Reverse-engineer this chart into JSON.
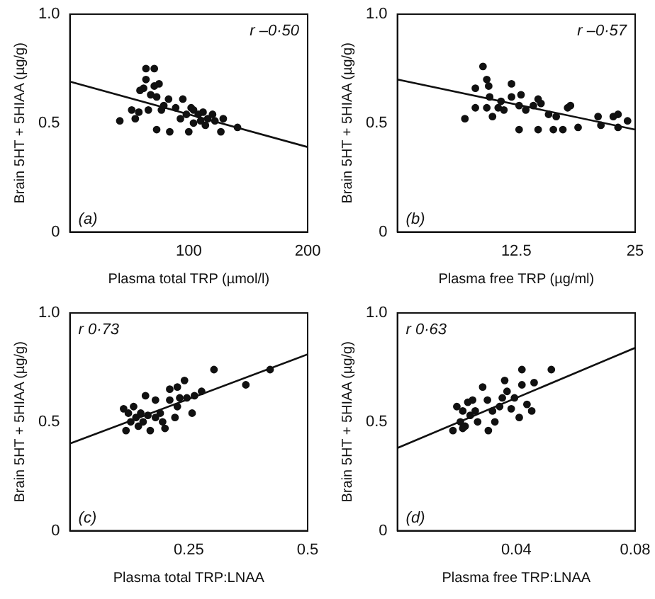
{
  "chart_data": [
    {
      "type": "scatter",
      "xlabel": "Plasma total TRP (µmol/l)",
      "ylabel": "Brain 5HT + 5HIAA (µg/g)",
      "xlim": [
        0,
        200
      ],
      "xticks": [
        100,
        200
      ],
      "ylim": [
        0,
        1
      ],
      "yticks": [
        {
          "value": 0,
          "label": "0"
        },
        {
          "value": 0.5,
          "label": "0.5"
        },
        {
          "value": 1,
          "label": "1.0"
        }
      ],
      "grid": false,
      "legend": false,
      "marker": "circle",
      "annotations": [
        "r –0·50",
        "(a)"
      ],
      "series": [
        {
          "color": "#111111",
          "x": [
            42,
            52,
            55,
            58,
            59,
            62,
            64,
            71,
            64,
            66,
            68,
            71,
            73,
            75,
            77,
            79,
            73,
            84,
            83,
            89,
            95,
            98,
            100,
            102,
            104,
            108,
            110,
            112,
            114,
            116,
            120,
            122,
            127,
            129,
            141,
            104,
            93
          ],
          "values": [
            0.51,
            0.56,
            0.52,
            0.55,
            0.65,
            0.66,
            0.75,
            0.75,
            0.7,
            0.56,
            0.63,
            0.67,
            0.62,
            0.68,
            0.56,
            0.58,
            0.47,
            0.46,
            0.61,
            0.57,
            0.61,
            0.54,
            0.46,
            0.57,
            0.56,
            0.54,
            0.51,
            0.55,
            0.49,
            0.52,
            0.54,
            0.51,
            0.46,
            0.52,
            0.48,
            0.5,
            0.52
          ]
        },
        {
          "type": "line",
          "color": "#111111",
          "marker": "none",
          "x": [
            0,
            200
          ],
          "values": [
            0.69,
            0.39
          ]
        }
      ]
    },
    {
      "type": "scatter",
      "xlabel": "Plasma free TRP (µg/ml)",
      "ylabel": "Brain 5HT + 5HIAA (µg/g)",
      "xlim": [
        0,
        25
      ],
      "xticks": [
        12.5,
        25
      ],
      "ylim": [
        0,
        1
      ],
      "yticks": [
        {
          "value": 0,
          "label": "0"
        },
        {
          "value": 0.5,
          "label": "0.5"
        },
        {
          "value": 1,
          "label": "1.0"
        }
      ],
      "grid": false,
      "legend": false,
      "marker": "circle",
      "annotations": [
        "r –0·57",
        "(b)"
      ],
      "series": [
        {
          "color": "#111111",
          "x": [
            7.1,
            8.2,
            8.2,
            9,
            9.4,
            9.6,
            9.7,
            10,
            9.4,
            10.6,
            10.9,
            11.2,
            12,
            12,
            12.8,
            13,
            13.5,
            14.3,
            14.8,
            15.1,
            14.8,
            15.9,
            16.4,
            16.7,
            17.4,
            17.9,
            18.2,
            19,
            21.1,
            21.4,
            22.7,
            23.2,
            23.2,
            24.2,
            12.8
          ],
          "values": [
            0.52,
            0.57,
            0.66,
            0.76,
            0.7,
            0.67,
            0.62,
            0.53,
            0.57,
            0.57,
            0.6,
            0.56,
            0.68,
            0.62,
            0.58,
            0.63,
            0.56,
            0.58,
            0.61,
            0.59,
            0.47,
            0.54,
            0.47,
            0.53,
            0.47,
            0.57,
            0.58,
            0.48,
            0.53,
            0.49,
            0.53,
            0.54,
            0.48,
            0.51,
            0.47
          ]
        },
        {
          "type": "line",
          "color": "#111111",
          "marker": "none",
          "x": [
            0,
            25
          ],
          "values": [
            0.7,
            0.47
          ]
        }
      ]
    },
    {
      "type": "scatter",
      "xlabel": "Plasma total TRP:LNAA",
      "ylabel": "Brain 5HT + 5HIAA (µg/g)",
      "xlim": [
        0,
        0.5
      ],
      "xticks": [
        0.25,
        0.5
      ],
      "ylim": [
        0,
        1
      ],
      "yticks": [
        {
          "value": 0,
          "label": "0"
        },
        {
          "value": 0.5,
          "label": "0.5"
        },
        {
          "value": 1,
          "label": "1.0"
        }
      ],
      "grid": false,
      "legend": false,
      "marker": "circle",
      "annotations": [
        "r 0·73",
        "(c)"
      ],
      "series": [
        {
          "color": "#111111",
          "x": [
            0.118,
            0.123,
            0.128,
            0.134,
            0.139,
            0.144,
            0.149,
            0.154,
            0.159,
            0.164,
            0.169,
            0.18,
            0.18,
            0.19,
            0.195,
            0.2,
            0.21,
            0.21,
            0.221,
            0.226,
            0.231,
            0.241,
            0.246,
            0.257,
            0.262,
            0.277,
            0.303,
            0.37,
            0.421,
            0.113,
            0.226
          ],
          "values": [
            0.46,
            0.54,
            0.5,
            0.57,
            0.52,
            0.48,
            0.54,
            0.5,
            0.62,
            0.53,
            0.46,
            0.52,
            0.6,
            0.54,
            0.5,
            0.47,
            0.65,
            0.6,
            0.52,
            0.57,
            0.61,
            0.69,
            0.61,
            0.54,
            0.62,
            0.64,
            0.74,
            0.67,
            0.74,
            0.56,
            0.66
          ]
        },
        {
          "type": "line",
          "color": "#111111",
          "marker": "none",
          "x": [
            0,
            0.5
          ],
          "values": [
            0.4,
            0.81
          ]
        }
      ]
    },
    {
      "type": "scatter",
      "xlabel": "Plasma free TRP:LNAA",
      "ylabel": "Brain 5HT + 5HIAA (µg/g)",
      "xlim": [
        0,
        0.08
      ],
      "xticks": [
        0.04,
        0.08
      ],
      "ylim": [
        0,
        1
      ],
      "yticks": [
        {
          "value": 0,
          "label": "0"
        },
        {
          "value": 0.5,
          "label": "0.5"
        },
        {
          "value": 1,
          "label": "1.0"
        }
      ],
      "grid": false,
      "legend": false,
      "marker": "circle",
      "annotations": [
        "r 0·63",
        "(d)"
      ],
      "series": [
        {
          "color": "#111111",
          "x": [
            0.0187,
            0.02,
            0.0212,
            0.022,
            0.0228,
            0.0237,
            0.0245,
            0.0253,
            0.0262,
            0.027,
            0.0287,
            0.0303,
            0.0306,
            0.032,
            0.0328,
            0.0344,
            0.0353,
            0.0361,
            0.0369,
            0.0383,
            0.0394,
            0.041,
            0.0419,
            0.0419,
            0.0436,
            0.0452,
            0.046,
            0.0518,
            0.022
          ],
          "values": [
            0.46,
            0.57,
            0.5,
            0.55,
            0.48,
            0.59,
            0.53,
            0.6,
            0.55,
            0.5,
            0.66,
            0.6,
            0.46,
            0.55,
            0.5,
            0.57,
            0.61,
            0.69,
            0.64,
            0.56,
            0.61,
            0.52,
            0.67,
            0.74,
            0.58,
            0.55,
            0.68,
            0.74,
            0.47
          ]
        },
        {
          "type": "line",
          "color": "#111111",
          "marker": "none",
          "x": [
            0,
            0.08
          ],
          "values": [
            0.38,
            0.84
          ]
        }
      ]
    }
  ]
}
